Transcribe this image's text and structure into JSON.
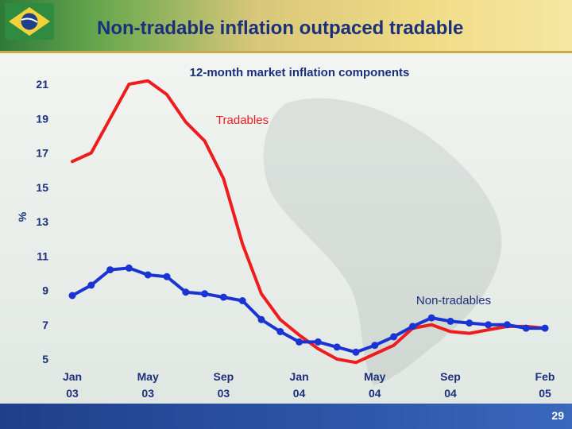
{
  "slide": {
    "title": "Non-tradable inflation outpaced tradable",
    "page_number": "29"
  },
  "chart_data": {
    "type": "line",
    "title": "12-month market inflation components",
    "ylabel": "%",
    "xlabel": "",
    "ylim": [
      5,
      21
    ],
    "yticks": [
      "21",
      "19",
      "17",
      "15",
      "13",
      "11",
      "9",
      "7",
      "5"
    ],
    "yticks_values": [
      21,
      19,
      17,
      15,
      13,
      11,
      9,
      7,
      5
    ],
    "x_ticks": [
      {
        "index": 0,
        "line1": "Jan",
        "line2": "03"
      },
      {
        "index": 4,
        "line1": "May",
        "line2": "03"
      },
      {
        "index": 8,
        "line1": "Sep",
        "line2": "03"
      },
      {
        "index": 12,
        "line1": "Jan",
        "line2": "04"
      },
      {
        "index": 16,
        "line1": "May",
        "line2": "04"
      },
      {
        "index": 20,
        "line1": "Sep",
        "line2": "04"
      },
      {
        "index": 25,
        "line1": "Feb",
        "line2": "05"
      }
    ],
    "series": [
      {
        "name": "Tradables",
        "color": "#ee1c1c",
        "markers": false,
        "values": [
          16.5,
          17.0,
          19.0,
          21.0,
          21.2,
          20.4,
          18.8,
          17.7,
          15.5,
          11.7,
          8.8,
          7.3,
          6.4,
          5.6,
          5.0,
          4.8,
          5.3,
          5.8,
          6.8,
          7.0,
          6.6,
          6.5,
          6.7,
          6.9,
          6.9,
          6.8
        ]
      },
      {
        "name": "Non-tradables",
        "color": "#1a34d4",
        "markers": true,
        "values": [
          8.7,
          9.3,
          10.2,
          10.3,
          9.9,
          9.8,
          8.9,
          8.8,
          8.6,
          8.4,
          7.3,
          6.6,
          6.0,
          6.0,
          5.7,
          5.4,
          5.8,
          6.3,
          6.9,
          7.4,
          7.2,
          7.1,
          7.0,
          7.0,
          6.8,
          6.8
        ]
      }
    ],
    "labels": {
      "tradables": "Tradables",
      "non_tradables": "Non-tradables"
    }
  }
}
